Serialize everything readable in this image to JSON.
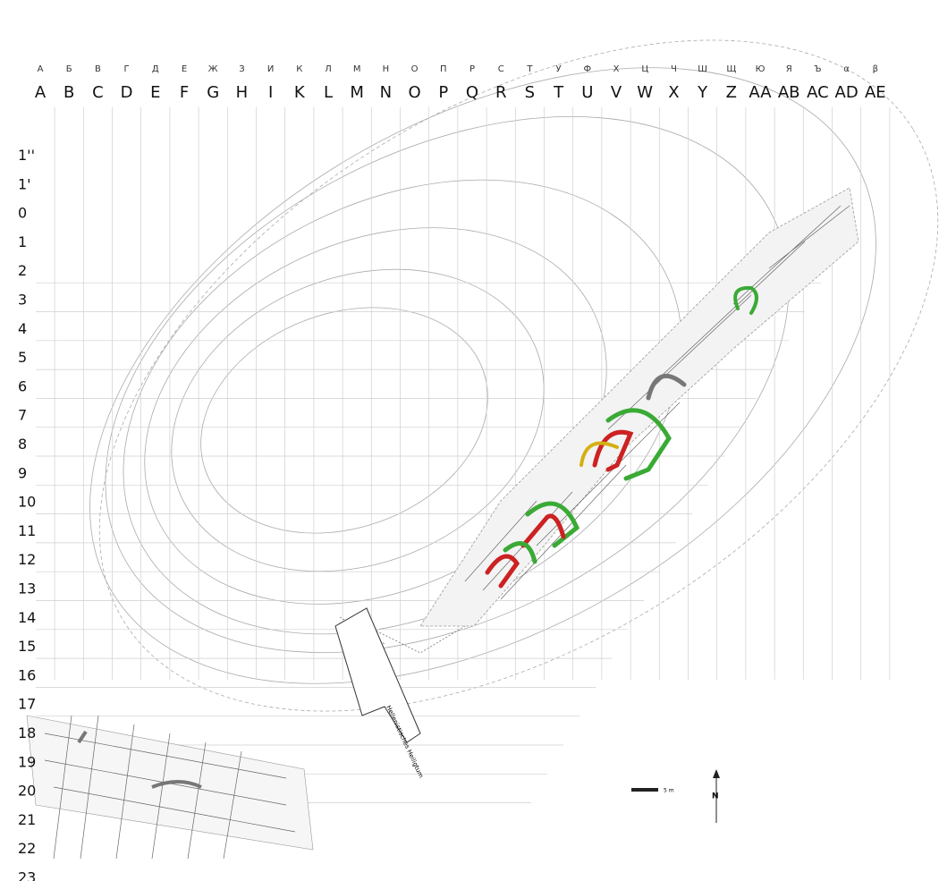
{
  "columns": [
    {
      "cyrillic": "А",
      "latin": "A"
    },
    {
      "cyrillic": "Б",
      "latin": "B"
    },
    {
      "cyrillic": "В",
      "latin": "C"
    },
    {
      "cyrillic": "Г",
      "latin": "D"
    },
    {
      "cyrillic": "Д",
      "latin": "E"
    },
    {
      "cyrillic": "Е",
      "latin": "F"
    },
    {
      "cyrillic": "Ж",
      "latin": "G"
    },
    {
      "cyrillic": "З",
      "latin": "H"
    },
    {
      "cyrillic": "И",
      "latin": "I"
    },
    {
      "cyrillic": "К",
      "latin": "K"
    },
    {
      "cyrillic": "Л",
      "latin": "L"
    },
    {
      "cyrillic": "М",
      "latin": "M"
    },
    {
      "cyrillic": "Н",
      "latin": "N"
    },
    {
      "cyrillic": "О",
      "latin": "O"
    },
    {
      "cyrillic": "П",
      "latin": "P"
    },
    {
      "cyrillic": "Р",
      "latin": "Q"
    },
    {
      "cyrillic": "С",
      "latin": "R"
    },
    {
      "cyrillic": "Т",
      "latin": "S"
    },
    {
      "cyrillic": "У",
      "latin": "T"
    },
    {
      "cyrillic": "Ф",
      "latin": "U"
    },
    {
      "cyrillic": "Х",
      "latin": "V"
    },
    {
      "cyrillic": "Ц",
      "latin": "W"
    },
    {
      "cyrillic": "Ч",
      "latin": "X"
    },
    {
      "cyrillic": "Ш",
      "latin": "Y"
    },
    {
      "cyrillic": "Щ",
      "latin": "Z"
    },
    {
      "cyrillic": "Ю",
      "latin": "AA"
    },
    {
      "cyrillic": "Я",
      "latin": "AB"
    },
    {
      "cyrillic": "Ъ",
      "latin": "AC"
    },
    {
      "cyrillic": "α",
      "latin": "AD"
    },
    {
      "cyrillic": "β",
      "latin": "AE"
    }
  ],
  "rows": [
    "1''",
    "1'",
    "0",
    "1",
    "2",
    "3",
    "4",
    "5",
    "6",
    "7",
    "8",
    "9",
    "10",
    "11",
    "12",
    "13",
    "14",
    "15",
    "16",
    "17",
    "18",
    "19",
    "20",
    "21",
    "22",
    "23"
  ],
  "labels": {
    "sanctuary": "Hellenistisches Heiligtum",
    "scale": "5 m",
    "north": "N"
  }
}
